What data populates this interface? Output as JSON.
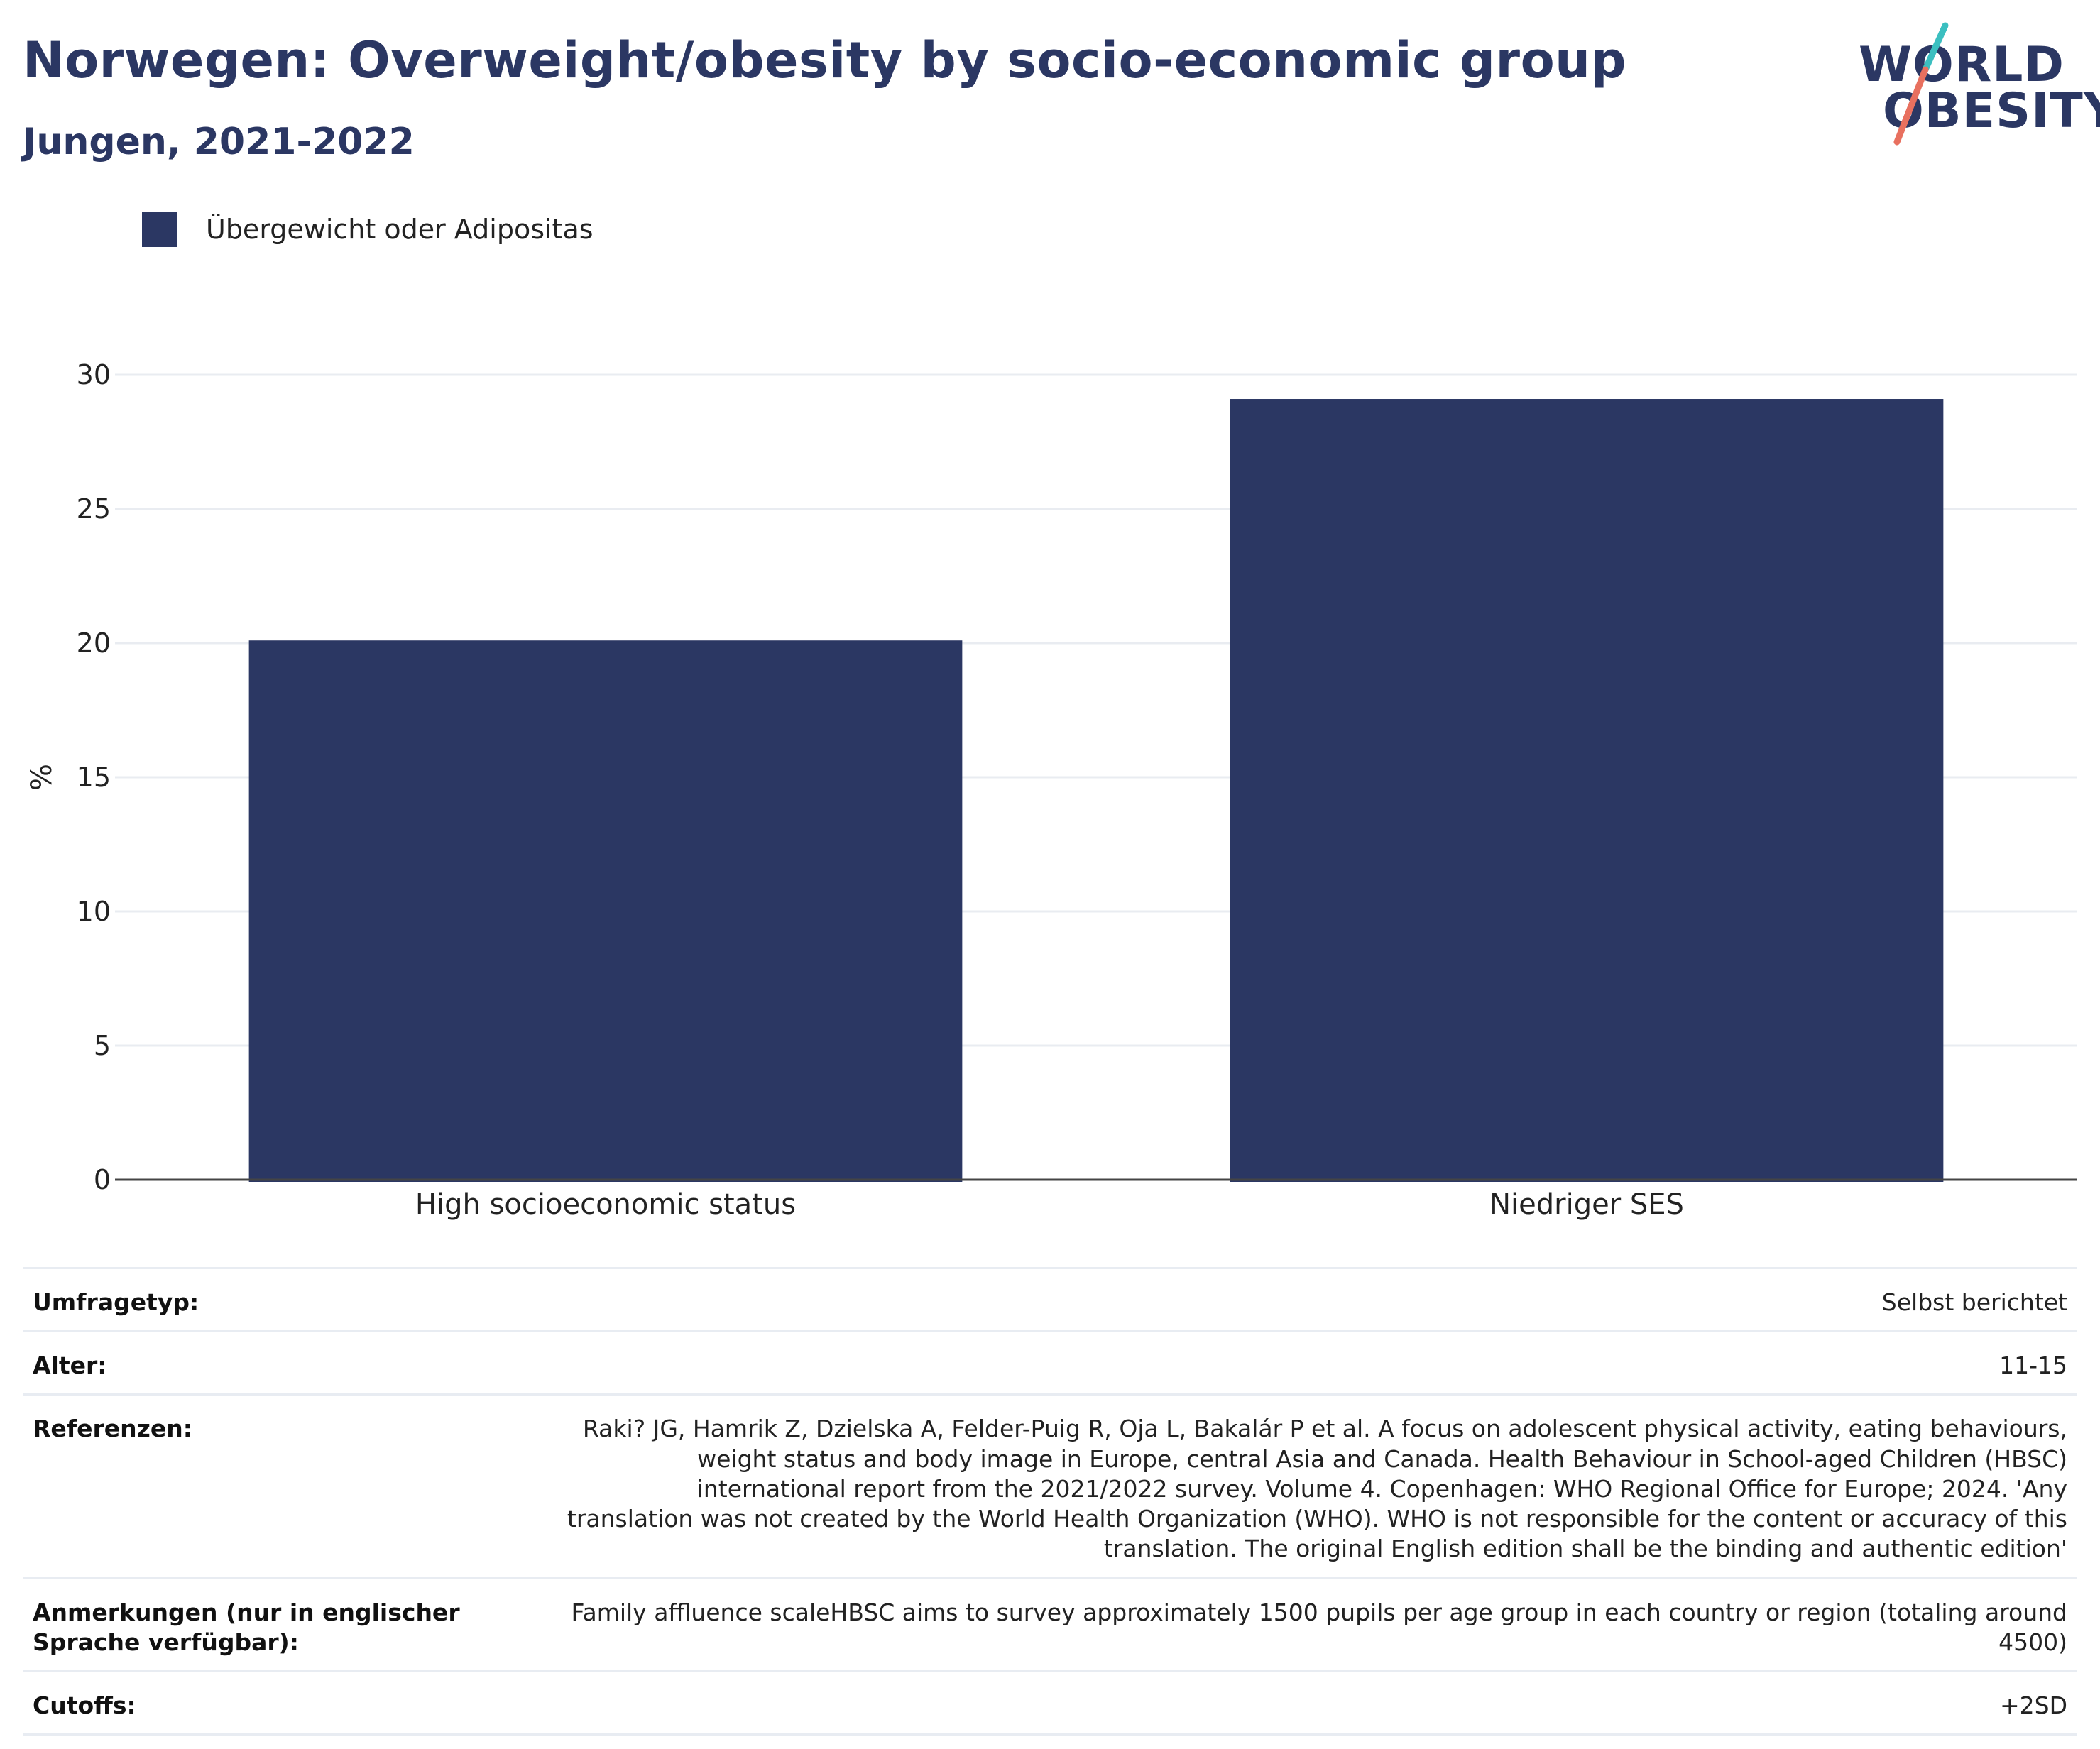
{
  "header": {
    "title": "Norwegen: Overweight/obesity by socio-economic group",
    "subtitle": "Jungen, 2021-2022"
  },
  "logo": {
    "line1": "WORLD",
    "line2": "OBESITY",
    "colors": {
      "text": "#2b3763",
      "slash_top": "#3bbfc0",
      "slash_bottom": "#e8705f"
    }
  },
  "legend": {
    "items": [
      {
        "label": "Übergewicht oder Adipositas",
        "color": "#2b3763"
      }
    ]
  },
  "chart_data": {
    "type": "bar",
    "categories": [
      "High socioeconomic status",
      "Niedriger SES"
    ],
    "series": [
      {
        "name": "Übergewicht oder Adipositas",
        "values": [
          20.1,
          29.1
        ],
        "color": "#2b3763"
      }
    ],
    "title": "Norwegen: Overweight/obesity by socio-economic group",
    "subtitle": "Jungen, 2021-2022",
    "xlabel": "",
    "ylabel": "%",
    "ylim": [
      0,
      30
    ],
    "yticks": [
      0,
      5,
      10,
      15,
      20,
      25,
      30
    ],
    "grid": true,
    "legend_position": "top-left"
  },
  "info": {
    "rows": [
      {
        "label": "Umfragetyp:",
        "value": "Selbst berichtet"
      },
      {
        "label": "Alter:",
        "value": "11-15"
      },
      {
        "label": "Referenzen:",
        "value": "Raki? JG, Hamrik Z, Dzielska A, Felder-Puig R, Oja L, Bakalár P et al. A focus on adolescent physical activity, eating behaviours, weight status and body image in Europe, central Asia and Canada. Health Behaviour in School-aged Children (HBSC) international report from the 2021/2022 survey. Volume 4. Copenhagen: WHO Regional Office for Europe; 2024. 'Any translation was not created by the World Health Organization (WHO). WHO is not responsible for the content or accuracy of this translation. The original English edition shall be the binding and authentic edition'"
      },
      {
        "label": "Anmerkungen (nur in englischer Sprache verfügbar):",
        "value": "Family affluence scaleHBSC aims to survey approximately 1500 pupils per age group in each country or region (totaling around 4500)"
      },
      {
        "label": "Cutoffs:",
        "value": "+2SD"
      }
    ]
  }
}
